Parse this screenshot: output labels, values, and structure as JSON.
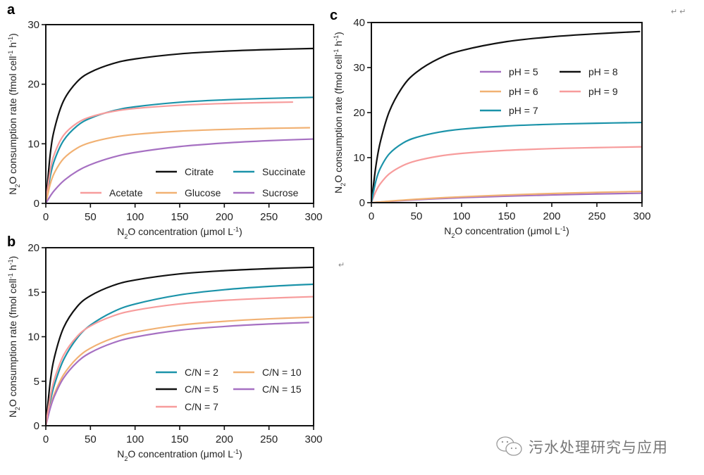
{
  "colors": {
    "black": "#111111",
    "teal": "#1b93a9",
    "pink": "#f79c9c",
    "orange": "#f1b173",
    "purple": "#a670c2"
  },
  "watermark": {
    "text": "污水处理研究与应用",
    "icon": "wechat-icon"
  },
  "return_marks": [
    "↵ ↵",
    "↵"
  ],
  "chart_data": [
    {
      "panel": "a",
      "type": "line",
      "xlabel": [
        {
          "t": "N"
        },
        {
          "t": "2",
          "s": "sub"
        },
        {
          "t": "O concentration (μmol L"
        },
        {
          "t": "-1",
          "s": "sup"
        },
        {
          "t": ")"
        }
      ],
      "ylabel": [
        {
          "t": "N"
        },
        {
          "t": "2",
          "s": "sub"
        },
        {
          "t": "O consumption rate (fmol cell"
        },
        {
          "t": "-1",
          "s": "sup"
        },
        {
          "t": " h"
        },
        {
          "t": "-1",
          "s": "sup"
        },
        {
          "t": ")"
        }
      ],
      "xlim": [
        0,
        300
      ],
      "ylim": [
        0,
        30
      ],
      "xticks": [
        0,
        50,
        100,
        150,
        200,
        250,
        300
      ],
      "yticks": [
        0,
        10,
        20,
        30
      ],
      "grid": false,
      "legend": "bottom-right",
      "series": [
        {
          "name": "Citrate",
          "color": "#111111",
          "x": [
            0,
            5,
            10,
            20,
            35,
            50,
            75,
            100,
            150,
            200,
            250,
            300
          ],
          "y": [
            0,
            8.28,
            12.67,
            17.24,
            20.4,
            22.01,
            23.45,
            24.24,
            25.09,
            25.54,
            25.81,
            26.0
          ]
        },
        {
          "name": "Succinate",
          "color": "#1b93a9",
          "x": [
            0,
            5,
            10,
            20,
            35,
            50,
            75,
            100,
            150,
            200,
            250,
            300
          ],
          "y": [
            0,
            4.59,
            7.37,
            10.57,
            12.99,
            14.3,
            15.52,
            16.21,
            16.97,
            17.37,
            17.62,
            17.8
          ]
        },
        {
          "name": "Acetate",
          "color": "#f79c9c",
          "x": [
            0,
            5,
            10,
            20,
            35,
            50,
            75,
            100,
            150,
            200,
            250,
            277
          ],
          "y": [
            0,
            5.56,
            8.45,
            11.44,
            13.47,
            14.51,
            15.43,
            15.93,
            16.47,
            16.76,
            16.93,
            17.0
          ]
        },
        {
          "name": "Glucose",
          "color": "#f1b173",
          "x": [
            0,
            5,
            10,
            20,
            35,
            50,
            75,
            100,
            150,
            200,
            250,
            296
          ],
          "y": [
            0,
            3.26,
            5.24,
            7.53,
            9.27,
            10.21,
            11.08,
            11.58,
            12.12,
            12.41,
            12.59,
            12.7
          ]
        },
        {
          "name": "Sucrose",
          "color": "#a670c2",
          "x": [
            0,
            5,
            10,
            20,
            35,
            50,
            75,
            100,
            150,
            200,
            250,
            300
          ],
          "y": [
            0,
            1.23,
            2.24,
            3.79,
            5.4,
            6.5,
            7.74,
            8.55,
            9.54,
            10.13,
            10.53,
            10.8
          ]
        }
      ]
    },
    {
      "panel": "b",
      "type": "line",
      "xlabel": [
        {
          "t": "N"
        },
        {
          "t": "2",
          "s": "sub"
        },
        {
          "t": "O concentration (μmol L"
        },
        {
          "t": "-1",
          "s": "sup"
        },
        {
          "t": ")"
        }
      ],
      "ylabel": [
        {
          "t": "N"
        },
        {
          "t": "2",
          "s": "sub"
        },
        {
          "t": "O consumption rate (fmol cell"
        },
        {
          "t": "-1",
          "s": "sup"
        },
        {
          "t": " h"
        },
        {
          "t": "-1",
          "s": "sup"
        },
        {
          "t": ")"
        }
      ],
      "xlim": [
        0,
        300
      ],
      "ylim": [
        0,
        20
      ],
      "xticks": [
        0,
        50,
        100,
        150,
        200,
        250,
        300
      ],
      "yticks": [
        0,
        5,
        10,
        15,
        20
      ],
      "grid": false,
      "legend": "bottom-right",
      "series": [
        {
          "name": "C/N = 2",
          "color": "#1b93a9",
          "x": [
            0,
            5,
            10,
            20,
            35,
            50,
            75,
            100,
            150,
            200,
            250,
            300
          ],
          "y": [
            0,
            2.74,
            4.73,
            7.43,
            9.84,
            11.3,
            12.78,
            13.67,
            14.7,
            15.28,
            15.65,
            15.9
          ]
        },
        {
          "name": "C/N = 10",
          "color": "#f1b173",
          "x": [
            0,
            5,
            10,
            20,
            35,
            50,
            75,
            100,
            150,
            200,
            250,
            300
          ],
          "y": [
            0,
            2.13,
            3.67,
            5.74,
            7.59,
            8.71,
            9.83,
            10.52,
            11.3,
            11.73,
            12.01,
            12.2
          ]
        },
        {
          "name": "C/N = 5",
          "color": "#111111",
          "x": [
            0,
            5,
            10,
            20,
            35,
            50,
            75,
            100,
            150,
            200,
            250,
            300
          ],
          "y": [
            0,
            4.97,
            7.84,
            11.03,
            13.37,
            14.6,
            15.74,
            16.37,
            17.06,
            17.42,
            17.65,
            17.8
          ]
        },
        {
          "name": "C/N = 15",
          "color": "#a670c2",
          "x": [
            0,
            5,
            10,
            20,
            35,
            50,
            75,
            100,
            150,
            200,
            250,
            295
          ],
          "y": [
            0,
            1.97,
            3.41,
            5.37,
            7.13,
            8.21,
            9.3,
            9.96,
            10.73,
            11.15,
            11.43,
            11.6
          ]
        },
        {
          "name": "C/N = 7",
          "color": "#f79c9c",
          "x": [
            0,
            5,
            10,
            20,
            35,
            50,
            75,
            100,
            150,
            200,
            250,
            300
          ],
          "y": [
            0,
            3.24,
            5.35,
            7.94,
            10.02,
            11.2,
            12.32,
            12.97,
            13.69,
            14.09,
            14.33,
            14.5
          ]
        }
      ]
    },
    {
      "panel": "c",
      "type": "line",
      "xlabel": [
        {
          "t": "N"
        },
        {
          "t": "2",
          "s": "sub"
        },
        {
          "t": "O concentration (μmol L"
        },
        {
          "t": "-1",
          "s": "sup"
        },
        {
          "t": ")"
        }
      ],
      "ylabel": [
        {
          "t": "N"
        },
        {
          "t": "2",
          "s": "sub"
        },
        {
          "t": "O consumption rate (fmol cell"
        },
        {
          "t": "-1",
          "s": "sup"
        },
        {
          "t": " h"
        },
        {
          "t": "-1",
          "s": "sup"
        },
        {
          "t": ")"
        }
      ],
      "xlim": [
        0,
        300
      ],
      "ylim": [
        0,
        40
      ],
      "xticks": [
        0,
        50,
        100,
        150,
        200,
        250,
        300
      ],
      "yticks": [
        0,
        10,
        20,
        30,
        40
      ],
      "grid": false,
      "legend": "top-right",
      "series": [
        {
          "name": "pH = 5",
          "color": "#a670c2",
          "x": [
            0,
            5,
            10,
            20,
            35,
            50,
            75,
            100,
            150,
            200,
            250,
            300
          ],
          "y": [
            0,
            0.08,
            0.15,
            0.29,
            0.47,
            0.64,
            0.89,
            1.1,
            1.44,
            1.71,
            1.93,
            2.1
          ]
        },
        {
          "name": "pH = 8",
          "color": "#111111",
          "x": [
            0,
            5,
            10,
            20,
            35,
            50,
            75,
            100,
            150,
            200,
            250,
            298
          ],
          "y": [
            0,
            8.13,
            13.55,
            20.3,
            25.82,
            28.97,
            32.01,
            33.78,
            35.76,
            36.83,
            37.51,
            38.0
          ]
        },
        {
          "name": "pH = 6",
          "color": "#f1b173",
          "x": [
            0,
            5,
            10,
            20,
            35,
            50,
            75,
            100,
            150,
            200,
            250,
            300
          ],
          "y": [
            0,
            0.09,
            0.17,
            0.34,
            0.56,
            0.76,
            1.05,
            1.3,
            1.71,
            2.03,
            2.29,
            2.5
          ]
        },
        {
          "name": "pH = 9",
          "color": "#f79c9c",
          "x": [
            0,
            5,
            10,
            20,
            35,
            50,
            75,
            100,
            150,
            200,
            250,
            300
          ],
          "y": [
            0,
            2.52,
            4.23,
            6.42,
            8.24,
            9.3,
            10.33,
            10.94,
            11.62,
            12.0,
            12.23,
            12.4
          ]
        },
        {
          "name": "pH = 7",
          "color": "#1b93a9",
          "x": [
            0,
            5,
            10,
            20,
            35,
            50,
            75,
            100,
            150,
            200,
            250,
            300
          ],
          "y": [
            0,
            4.83,
            7.67,
            10.87,
            13.24,
            14.5,
            15.66,
            16.32,
            17.03,
            17.41,
            17.64,
            17.8
          ]
        }
      ]
    }
  ]
}
